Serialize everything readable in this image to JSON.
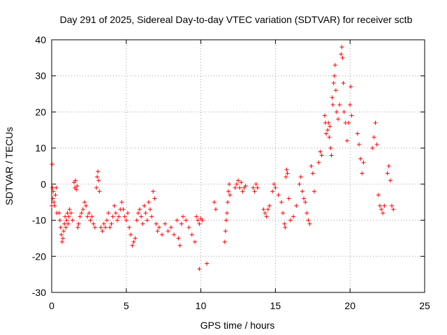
{
  "chart_data": {
    "type": "scatter",
    "title": "Day 291 of 2025, Sidereal Day-to-day VTEC variation (SDTVAR) for receiver sctb",
    "xlabel": "GPS time / hours",
    "ylabel": "SDTVAR / TECUs",
    "xlim": [
      0,
      25
    ],
    "ylim": [
      -30,
      40
    ],
    "xticks": [
      0,
      5,
      10,
      15,
      20,
      25
    ],
    "yticks": [
      -30,
      -20,
      -10,
      0,
      10,
      20,
      30,
      40
    ],
    "grid": true,
    "marker": "+",
    "color": "#ff0000",
    "series": [
      {
        "name": "SDTVAR",
        "values": [
          [
            0.0,
            -6
          ],
          [
            0.03,
            5.5
          ],
          [
            0.05,
            -1
          ],
          [
            0.08,
            -4
          ],
          [
            0.1,
            -2
          ],
          [
            0.15,
            -5
          ],
          [
            0.2,
            -6
          ],
          [
            0.25,
            -3
          ],
          [
            0.3,
            -1
          ],
          [
            0.35,
            -8
          ],
          [
            0.5,
            -8
          ],
          [
            0.55,
            -10
          ],
          [
            0.6,
            -12
          ],
          [
            0.65,
            -14
          ],
          [
            0.7,
            -16
          ],
          [
            0.75,
            -15
          ],
          [
            0.8,
            -13
          ],
          [
            0.85,
            -11
          ],
          [
            0.9,
            -9
          ],
          [
            0.95,
            -12
          ],
          [
            1.0,
            -10
          ],
          [
            1.05,
            -8
          ],
          [
            1.1,
            -11
          ],
          [
            1.15,
            -9
          ],
          [
            1.2,
            -7
          ],
          [
            1.3,
            -8
          ],
          [
            1.4,
            -10
          ],
          [
            1.5,
            0.5
          ],
          [
            1.55,
            -1
          ],
          [
            1.6,
            1
          ],
          [
            1.65,
            -1.5
          ],
          [
            1.7,
            -0.5
          ],
          [
            1.75,
            -12
          ],
          [
            1.8,
            -11
          ],
          [
            1.9,
            -9
          ],
          [
            2.0,
            -8
          ],
          [
            2.1,
            -7
          ],
          [
            2.2,
            -5
          ],
          [
            2.3,
            -6
          ],
          [
            2.4,
            -9
          ],
          [
            2.5,
            -8
          ],
          [
            2.6,
            -10
          ],
          [
            2.7,
            -9
          ],
          [
            2.8,
            -11
          ],
          [
            2.9,
            -12
          ],
          [
            3.0,
            -1
          ],
          [
            3.05,
            2
          ],
          [
            3.1,
            3.5
          ],
          [
            3.15,
            1
          ],
          [
            3.2,
            -2
          ],
          [
            3.3,
            -12
          ],
          [
            3.4,
            -13
          ],
          [
            3.5,
            -11
          ],
          [
            3.6,
            -12
          ],
          [
            3.7,
            -10
          ],
          [
            3.8,
            -8
          ],
          [
            3.9,
            -12
          ],
          [
            4.0,
            -11
          ],
          [
            4.1,
            -9
          ],
          [
            4.2,
            -6
          ],
          [
            4.3,
            -8
          ],
          [
            4.4,
            -10
          ],
          [
            4.5,
            -9
          ],
          [
            4.6,
            -7
          ],
          [
            4.7,
            -5
          ],
          [
            4.8,
            -7
          ],
          [
            4.9,
            -9
          ],
          [
            5.0,
            -10
          ],
          [
            5.1,
            -8
          ],
          [
            5.2,
            -12
          ],
          [
            5.3,
            -14
          ],
          [
            5.4,
            -17
          ],
          [
            5.5,
            -16
          ],
          [
            5.6,
            -15
          ],
          [
            5.7,
            -10
          ],
          [
            5.8,
            -8
          ],
          [
            5.9,
            -7
          ],
          [
            6.0,
            -9
          ],
          [
            6.1,
            -11
          ],
          [
            6.2,
            -6
          ],
          [
            6.3,
            -8
          ],
          [
            6.4,
            -10
          ],
          [
            6.5,
            -5
          ],
          [
            6.6,
            -7
          ],
          [
            6.7,
            -9
          ],
          [
            6.8,
            -2
          ],
          [
            6.9,
            -4
          ],
          [
            7.0,
            -11
          ],
          [
            7.1,
            -13
          ],
          [
            7.2,
            -12
          ],
          [
            7.4,
            -14
          ],
          [
            7.6,
            -11
          ],
          [
            7.8,
            -13
          ],
          [
            8.0,
            -12
          ],
          [
            8.2,
            -14
          ],
          [
            8.4,
            -10
          ],
          [
            8.5,
            -15
          ],
          [
            8.6,
            -17
          ],
          [
            8.7,
            -11
          ],
          [
            8.8,
            -9
          ],
          [
            9.0,
            -10
          ],
          [
            9.2,
            -12
          ],
          [
            9.4,
            -14
          ],
          [
            9.6,
            -16
          ],
          [
            9.7,
            -9
          ],
          [
            9.8,
            -10
          ],
          [
            9.9,
            -11
          ],
          [
            10.0,
            -9.5
          ],
          [
            10.1,
            -10
          ],
          [
            9.9,
            -23.5
          ],
          [
            10.4,
            -22
          ],
          [
            10.9,
            -5
          ],
          [
            11.0,
            -7
          ],
          [
            11.6,
            -16
          ],
          [
            11.65,
            -13
          ],
          [
            11.7,
            -10
          ],
          [
            11.75,
            -8
          ],
          [
            11.8,
            -5
          ],
          [
            11.85,
            -2
          ],
          [
            11.9,
            0
          ],
          [
            11.95,
            -3
          ],
          [
            12.3,
            -1
          ],
          [
            12.4,
            0
          ],
          [
            12.5,
            1
          ],
          [
            12.6,
            -1
          ],
          [
            12.7,
            0.5
          ],
          [
            12.8,
            -2
          ],
          [
            12.9,
            -1
          ],
          [
            13.0,
            -0.5
          ],
          [
            13.5,
            -1
          ],
          [
            13.6,
            -2
          ],
          [
            13.7,
            0
          ],
          [
            13.8,
            -1
          ],
          [
            14.2,
            -7
          ],
          [
            14.3,
            -8
          ],
          [
            14.4,
            -9
          ],
          [
            14.5,
            -7
          ],
          [
            14.6,
            -6
          ],
          [
            14.8,
            -2
          ],
          [
            14.9,
            0
          ],
          [
            15.0,
            -1
          ],
          [
            15.2,
            -3
          ],
          [
            15.4,
            -5
          ],
          [
            15.5,
            -8
          ],
          [
            15.6,
            -11
          ],
          [
            15.65,
            -12
          ],
          [
            15.7,
            2
          ],
          [
            15.75,
            4
          ],
          [
            15.8,
            3
          ],
          [
            15.9,
            -4
          ],
          [
            16.0,
            -10
          ],
          [
            16.2,
            -9
          ],
          [
            16.4,
            -6
          ],
          [
            16.6,
            0
          ],
          [
            16.7,
            2
          ],
          [
            16.8,
            -2
          ],
          [
            16.9,
            -4
          ],
          [
            17.0,
            -5
          ],
          [
            17.1,
            -8
          ],
          [
            17.2,
            -10
          ],
          [
            17.3,
            -11
          ],
          [
            17.4,
            5
          ],
          [
            17.5,
            3
          ],
          [
            17.6,
            -2
          ],
          [
            17.9,
            6
          ],
          [
            18.0,
            9
          ],
          [
            18.1,
            8
          ],
          [
            18.3,
            19
          ],
          [
            18.35,
            17
          ],
          [
            18.4,
            14
          ],
          [
            18.5,
            15
          ],
          [
            18.55,
            17
          ],
          [
            18.6,
            13
          ],
          [
            18.65,
            16
          ],
          [
            18.7,
            10
          ],
          [
            18.75,
            8
          ],
          [
            18.8,
            24
          ],
          [
            18.85,
            22
          ],
          [
            18.9,
            28
          ],
          [
            18.95,
            30
          ],
          [
            19.0,
            33
          ],
          [
            19.05,
            26
          ],
          [
            19.1,
            20
          ],
          [
            19.2,
            18
          ],
          [
            19.3,
            22
          ],
          [
            19.4,
            36
          ],
          [
            19.45,
            38
          ],
          [
            19.5,
            35
          ],
          [
            19.55,
            28
          ],
          [
            19.6,
            20
          ],
          [
            19.7,
            17
          ],
          [
            19.8,
            12
          ],
          [
            19.9,
            17
          ],
          [
            20.0,
            22
          ],
          [
            20.05,
            27
          ],
          [
            20.1,
            19
          ],
          [
            20.5,
            14
          ],
          [
            20.6,
            11
          ],
          [
            20.7,
            7
          ],
          [
            20.8,
            3
          ],
          [
            20.9,
            6
          ],
          [
            21.5,
            10
          ],
          [
            21.6,
            13
          ],
          [
            21.7,
            17
          ],
          [
            21.8,
            11
          ],
          [
            21.9,
            -3
          ],
          [
            22.0,
            -6
          ],
          [
            22.1,
            -7
          ],
          [
            22.2,
            -8
          ],
          [
            22.3,
            -6
          ],
          [
            22.5,
            3
          ],
          [
            22.6,
            5
          ],
          [
            22.7,
            1
          ],
          [
            22.8,
            -6
          ],
          [
            22.9,
            -7
          ]
        ]
      }
    ]
  }
}
